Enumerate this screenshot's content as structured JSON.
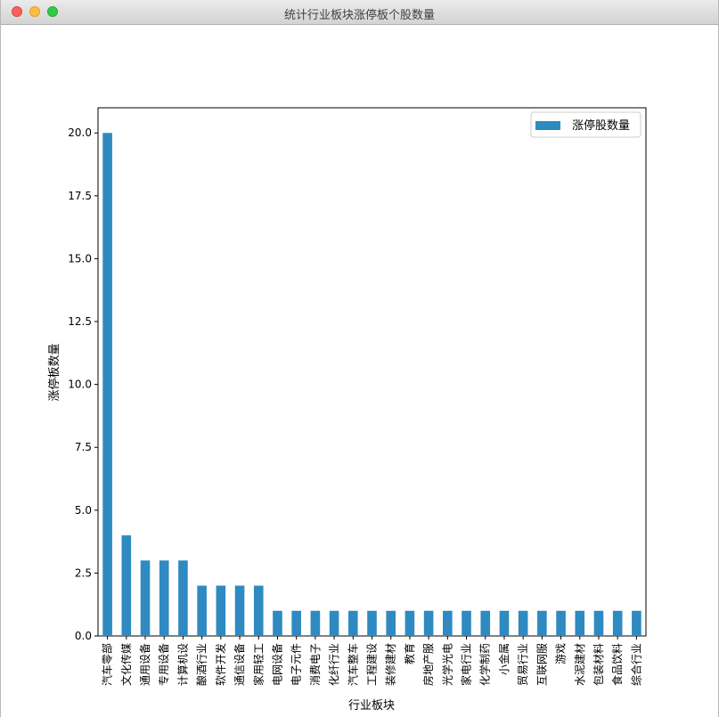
{
  "window": {
    "title": "统计行业板块涨停板个股数量"
  },
  "chart_data": {
    "type": "bar",
    "title": "",
    "xlabel": "行业板块",
    "ylabel": "涨停板数量",
    "ylim": [
      0,
      21
    ],
    "yticks": [
      "0.0",
      "2.5",
      "5.0",
      "7.5",
      "10.0",
      "12.5",
      "15.0",
      "17.5",
      "20.0"
    ],
    "grid": false,
    "legend_position": "top-right",
    "bar_color": "#2e8ac0",
    "categories": [
      "汽车零部",
      "文化传媒",
      "通用设备",
      "专用设备",
      "计算机设",
      "酿酒行业",
      "软件开发",
      "通信设备",
      "家用轻工",
      "电网设备",
      "电子元件",
      "消费电子",
      "化纤行业",
      "汽车整车",
      "工程建设",
      "装修建材",
      "教育",
      "房地产服",
      "光学光电",
      "家电行业",
      "化学制药",
      "小金属",
      "贸易行业",
      "互联网服",
      "游戏",
      "水泥建材",
      "包装材料",
      "食品饮料",
      "综合行业"
    ],
    "series": [
      {
        "name": "涨停股数量",
        "values": [
          20,
          4,
          3,
          3,
          3,
          2,
          2,
          2,
          2,
          1,
          1,
          1,
          1,
          1,
          1,
          1,
          1,
          1,
          1,
          1,
          1,
          1,
          1,
          1,
          1,
          1,
          1,
          1,
          1
        ]
      }
    ]
  }
}
